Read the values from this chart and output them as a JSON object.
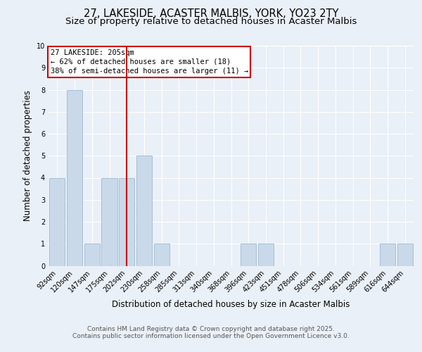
{
  "title": "27, LAKESIDE, ACASTER MALBIS, YORK, YO23 2TY",
  "subtitle": "Size of property relative to detached houses in Acaster Malbis",
  "xlabel": "Distribution of detached houses by size in Acaster Malbis",
  "ylabel": "Number of detached properties",
  "categories": [
    "92sqm",
    "120sqm",
    "147sqm",
    "175sqm",
    "202sqm",
    "230sqm",
    "258sqm",
    "285sqm",
    "313sqm",
    "340sqm",
    "368sqm",
    "396sqm",
    "423sqm",
    "451sqm",
    "478sqm",
    "506sqm",
    "534sqm",
    "561sqm",
    "589sqm",
    "616sqm",
    "644sqm"
  ],
  "values": [
    4,
    8,
    1,
    4,
    4,
    5,
    1,
    0,
    0,
    0,
    0,
    1,
    1,
    0,
    0,
    0,
    0,
    0,
    0,
    1,
    1
  ],
  "bar_color": "#c9d9ea",
  "bar_edge_color": "#a0b8d0",
  "red_line_index": 4,
  "red_line_label": "27 LAKESIDE: 205sqm",
  "annotation_line1": "← 62% of detached houses are smaller (18)",
  "annotation_line2": "38% of semi-detached houses are larger (11) →",
  "annotation_box_facecolor": "#ffffff",
  "annotation_box_edgecolor": "#cc0000",
  "ylim": [
    0,
    10
  ],
  "yticks": [
    0,
    1,
    2,
    3,
    4,
    5,
    6,
    7,
    8,
    9,
    10
  ],
  "footer_line1": "Contains HM Land Registry data © Crown copyright and database right 2025.",
  "footer_line2": "Contains public sector information licensed under the Open Government Licence v3.0.",
  "bg_color": "#eaf0f7",
  "plot_bg_color": "#eaf0f7",
  "grid_color": "#ffffff",
  "title_fontsize": 10.5,
  "subtitle_fontsize": 9.5,
  "tick_fontsize": 7,
  "label_fontsize": 8.5,
  "footer_fontsize": 6.5,
  "annotation_fontsize": 7.5
}
